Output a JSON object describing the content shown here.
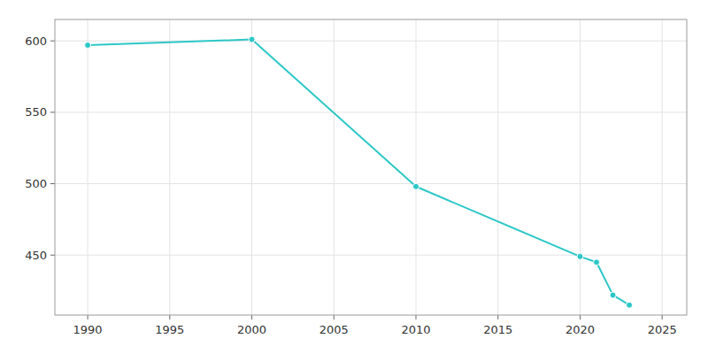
{
  "chart_data": {
    "type": "line",
    "x": [
      1990,
      2000,
      2010,
      2020,
      2021,
      2022,
      2023
    ],
    "values": [
      597,
      601,
      498,
      449,
      445,
      422,
      415
    ],
    "color": "#2dc7c7",
    "marker": "circle",
    "xlim": [
      1988,
      2026.5
    ],
    "ylim": [
      408,
      615
    ],
    "xticks": [
      1990,
      1995,
      2000,
      2005,
      2010,
      2015,
      2020,
      2025
    ],
    "yticks": [
      450,
      500,
      550,
      600
    ],
    "grid": true
  }
}
